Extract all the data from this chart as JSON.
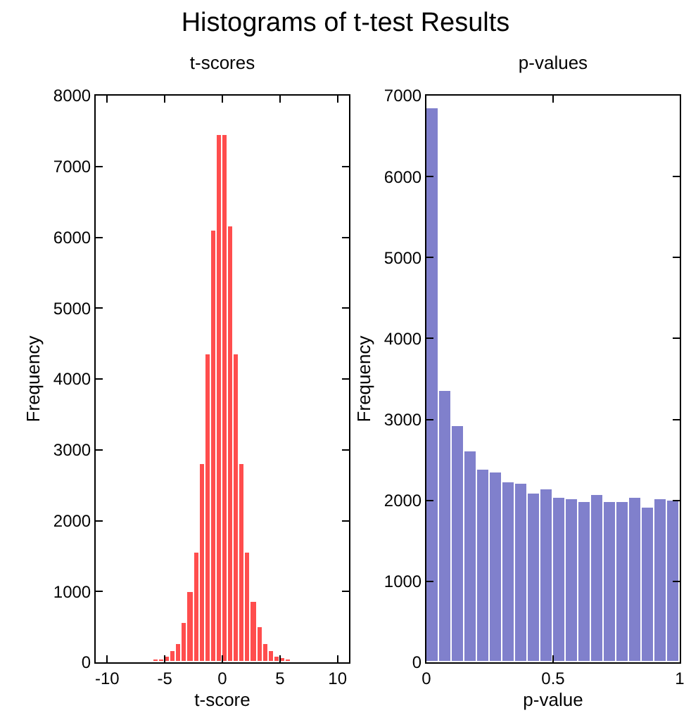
{
  "chart_data": [
    {
      "type": "histogram",
      "title": "Histograms of t-test Results",
      "subtitle": "t-scores",
      "xlabel": "t-score",
      "ylabel": "Frequency",
      "color": "#ff4d4d",
      "bins": [
        -6.5,
        -6,
        -5.5,
        -5,
        -4.5,
        -4,
        -3.5,
        -3,
        -2.5,
        -2,
        -1.5,
        -1,
        -0.5,
        0,
        0.5,
        1,
        1.5,
        2,
        2.5,
        3,
        3.5,
        4,
        4.5,
        5,
        5.5,
        6,
        6.5
      ],
      "values": [
        20,
        40,
        40,
        80,
        150,
        250,
        550,
        1000,
        1550,
        2800,
        4350,
        6100,
        7450,
        7450,
        6150,
        4350,
        2800,
        1550,
        850,
        500,
        250,
        150,
        80,
        50,
        30,
        20
      ],
      "xlim": [
        -11,
        11
      ],
      "xticks": [
        -10,
        -5,
        0,
        5,
        10
      ],
      "ylim": [
        0,
        8000
      ],
      "yticks": [
        0,
        1000,
        2000,
        3000,
        4000,
        5000,
        6000,
        7000,
        8000
      ]
    },
    {
      "type": "histogram",
      "title": "p-values",
      "xlabel": "p-value",
      "ylabel": "Frequency",
      "color": "#8080cc",
      "bins": [
        0,
        0.05,
        0.1,
        0.15,
        0.2,
        0.25,
        0.3,
        0.35,
        0.4,
        0.45,
        0.5,
        0.55,
        0.6,
        0.65,
        0.7,
        0.75,
        0.8,
        0.85,
        0.9,
        0.95,
        1
      ],
      "values": [
        6840,
        3350,
        2910,
        2600,
        2380,
        2340,
        2220,
        2200,
        2090,
        2130,
        2040,
        2020,
        1980,
        2060,
        1980,
        1980,
        2040,
        1910,
        2020,
        2000
      ],
      "xlim": [
        0,
        1
      ],
      "xticks": [
        0,
        0.5,
        1
      ],
      "ylim": [
        0,
        7000
      ],
      "yticks": [
        0,
        1000,
        2000,
        3000,
        4000,
        5000,
        6000,
        7000
      ]
    }
  ]
}
